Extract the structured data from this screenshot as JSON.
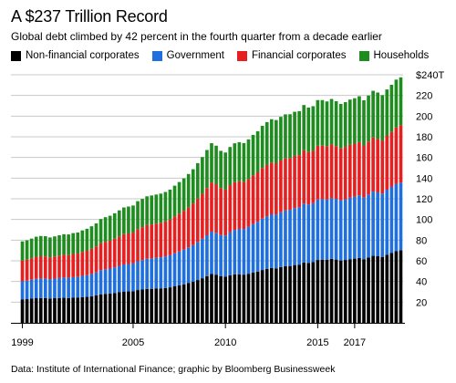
{
  "title": "A $237 Trillion Record",
  "subtitle": "Global debt climbed by 42 percent in the fourth quarter from a decade earlier",
  "source": "Data: Institute of International Finance; graphic by Bloomberg Businessweek",
  "chart_data": {
    "type": "bar",
    "stacked": true,
    "x_tick_labels": [
      "1999",
      "2005",
      "2010",
      "2015",
      "2017"
    ],
    "y_tick_labels": [
      "$240T",
      "220",
      "200",
      "180",
      "160",
      "140",
      "120",
      "100",
      "80",
      "60",
      "40",
      "20"
    ],
    "ylim": [
      0,
      240
    ],
    "grid": true,
    "legend_position": "top-left",
    "series": [
      {
        "name": "Non-financial corporates",
        "color": "#000000",
        "values": [
          22.5,
          22.9,
          23.4,
          23.8,
          23.9,
          23.9,
          23.5,
          23.8,
          24.0,
          24.2,
          24.0,
          24.3,
          24.3,
          24.8,
          25.1,
          25.7,
          26.5,
          27.6,
          28.0,
          28.3,
          28.9,
          29.6,
          30.3,
          30.4,
          30.6,
          31.7,
          32.2,
          32.8,
          32.9,
          33.1,
          33.3,
          33.7,
          34.3,
          35.3,
          36.2,
          37.2,
          38.4,
          39.7,
          41.4,
          43.1,
          45.1,
          47.2,
          46.6,
          45.2,
          44.6,
          46.1,
          46.9,
          47.0,
          46.6,
          47.5,
          48.6,
          49.6,
          51.1,
          52.1,
          53.0,
          52.7,
          53.9,
          54.9,
          55.0,
          55.9,
          56.3,
          58.3,
          57.9,
          58.7,
          60.8,
          61.1,
          60.9,
          61.9,
          61.2,
          60.3,
          60.8,
          61.6,
          62.1,
          62.8,
          61.6,
          63.2,
          64.8,
          64.4,
          63.8,
          65.9,
          67.5,
          69.3,
          70.1
        ]
      },
      {
        "name": "Government",
        "color": "#1f6fde",
        "values": [
          17.7,
          17.9,
          18.3,
          18.8,
          19.0,
          19.0,
          18.8,
          19.0,
          19.3,
          19.6,
          19.6,
          19.9,
          20.1,
          20.6,
          21.0,
          21.6,
          22.3,
          23.3,
          23.8,
          24.2,
          24.8,
          25.5,
          26.2,
          26.5,
          26.8,
          27.9,
          28.5,
          29.2,
          29.5,
          29.8,
          30.1,
          30.5,
          31.1,
          32.0,
          32.8,
          33.6,
          34.6,
          35.6,
          36.9,
          38.2,
          39.6,
          41.0,
          40.5,
          39.8,
          39.9,
          41.6,
          43.0,
          43.9,
          44.2,
          45.5,
          47.0,
          48.2,
          49.7,
          51.0,
          52.0,
          52.2,
          53.1,
          53.8,
          54.3,
          55.1,
          55.6,
          57.1,
          56.5,
          57.0,
          58.5,
          58.6,
          58.3,
          58.9,
          58.7,
          58.2,
          58.7,
          59.4,
          60.0,
          60.6,
          59.6,
          60.9,
          62.2,
          61.8,
          61.3,
          62.9,
          64.0,
          65.2,
          65.5
        ]
      },
      {
        "name": "Financial corporates",
        "color": "#e62020",
        "values": [
          20.0,
          20.3,
          20.8,
          21.3,
          21.5,
          21.4,
          21.1,
          21.4,
          21.7,
          22.0,
          22.0,
          22.4,
          22.6,
          23.1,
          23.6,
          24.3,
          25.0,
          26.1,
          26.6,
          27.0,
          27.7,
          28.5,
          29.3,
          29.6,
          29.9,
          31.1,
          31.8,
          32.5,
          32.8,
          33.1,
          33.4,
          33.9,
          34.5,
          35.6,
          36.6,
          37.6,
          38.8,
          40.2,
          41.9,
          43.6,
          45.7,
          47.6,
          47.0,
          45.3,
          44.4,
          45.5,
          46.2,
          46.0,
          45.4,
          46.1,
          47.0,
          47.8,
          49.0,
          49.6,
          50.0,
          49.5,
          50.1,
          50.4,
          50.1,
          50.5,
          50.3,
          51.6,
          50.8,
          50.7,
          52.0,
          51.7,
          51.4,
          51.8,
          51.0,
          50.3,
          50.7,
          51.2,
          51.3,
          51.4,
          50.4,
          51.3,
          52.3,
          51.7,
          51.0,
          52.1,
          53.2,
          54.5,
          55.6
        ]
      },
      {
        "name": "Households",
        "color": "#1e8c1e",
        "values": [
          18.6,
          18.7,
          19.0,
          19.4,
          19.6,
          19.5,
          19.2,
          19.4,
          19.7,
          19.9,
          19.9,
          20.2,
          20.4,
          20.9,
          21.3,
          21.8,
          22.4,
          23.4,
          23.8,
          24.1,
          24.6,
          25.2,
          25.8,
          26.0,
          26.2,
          27.0,
          27.4,
          27.9,
          28.0,
          28.1,
          28.2,
          28.5,
          29.0,
          29.8,
          30.6,
          31.3,
          32.2,
          33.1,
          34.3,
          35.5,
          36.8,
          38.0,
          37.3,
          36.1,
          35.9,
          36.9,
          37.6,
          37.9,
          37.7,
          38.4,
          39.2,
          39.8,
          40.8,
          41.5,
          42.0,
          41.8,
          42.2,
          42.6,
          42.4,
          42.7,
          42.6,
          43.7,
          43.1,
          43.2,
          44.2,
          44.1,
          43.6,
          44.0,
          43.5,
          43.0,
          43.3,
          43.8,
          43.9,
          44.4,
          43.7,
          44.5,
          45.2,
          44.9,
          44.2,
          44.9,
          45.6,
          46.3,
          46.3
        ]
      }
    ]
  }
}
